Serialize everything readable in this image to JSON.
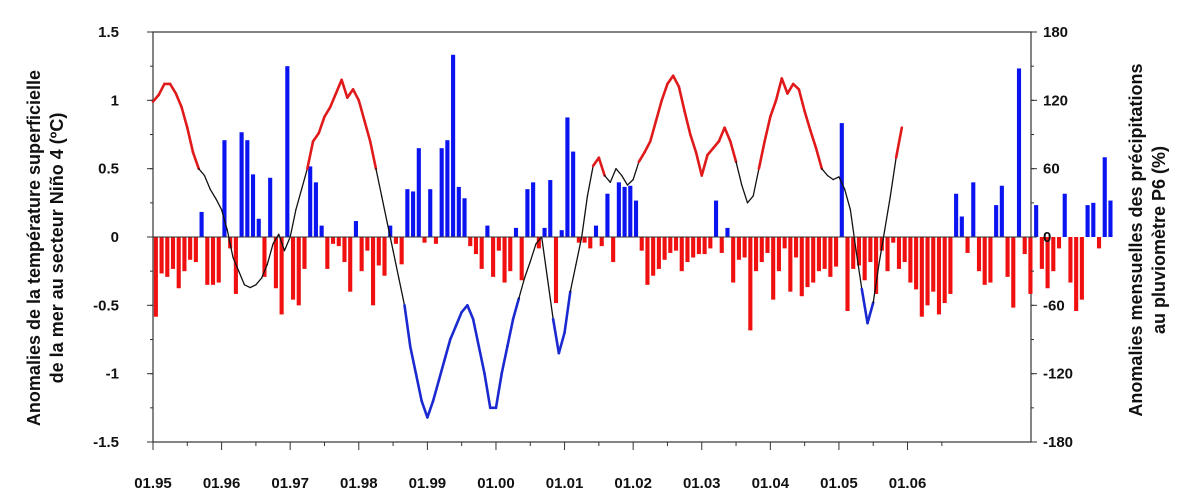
{
  "chart_data": {
    "type": "bar",
    "title": "",
    "xlabel": "",
    "ylabel_left_line1": "Anomalies de la température superficielle",
    "ylabel_left_line2": "de la mer au secteur Niño 4 (ºC)",
    "ylabel_right_line1": "Anomalies mensuelles des précipitations",
    "ylabel_right_line2": "au pluviomètre P6 (%)",
    "x_ticks": [
      "01.95",
      "01.96",
      "01.97",
      "01.98",
      "01.99",
      "01.00",
      "01.01",
      "01.02",
      "01.03",
      "01.04",
      "01.05",
      "01.06"
    ],
    "x_range": [
      0,
      12.8
    ],
    "y_left_range": [
      -1.5,
      1.5
    ],
    "y_left_ticks": [
      "-1.5",
      "-1",
      "-0.5",
      "0",
      "0.5",
      "1",
      "1.5"
    ],
    "y_right_range": [
      -180,
      180
    ],
    "y_right_ticks": [
      "-180",
      "-120",
      "-60",
      "0",
      "60",
      "120",
      "180"
    ],
    "colors": {
      "rain_positive": "#0a14f0",
      "rain_negative": "#f01010",
      "sst_warm": "#e01a1a",
      "sst_cold": "#1a2ad0",
      "sst_neutral": "#111111"
    },
    "series": [
      {
        "type": "bar",
        "axis": "right",
        "values": [
          -70,
          -32,
          -35,
          -28,
          -45,
          -30,
          -20,
          -22,
          22,
          -42,
          -42,
          -40,
          85,
          -10,
          -50,
          92,
          85,
          55,
          16,
          -35,
          52,
          -45,
          -68,
          150,
          -55,
          -60,
          -28,
          62,
          48,
          10,
          -28,
          -6,
          -8,
          -22,
          -48,
          14,
          -30,
          -12,
          -60,
          -25,
          -34,
          10,
          -6,
          -24,
          42,
          40,
          78,
          -5,
          42,
          -6,
          78,
          85,
          160,
          44,
          34,
          -8,
          -15,
          -28,
          10,
          -35,
          -12,
          -40,
          -30,
          8,
          -38,
          42,
          48,
          -10,
          8,
          50,
          -58,
          6,
          105,
          75,
          -5,
          -5,
          -10,
          10,
          -8,
          38,
          -22,
          48,
          44,
          45,
          32,
          -12,
          -42,
          -34,
          -28,
          -20,
          -14,
          -12,
          -30,
          -22,
          -18,
          -15,
          -15,
          -10,
          32,
          -14,
          8,
          -40,
          -20,
          -18,
          -82,
          -30,
          -22,
          -14,
          -55,
          -30,
          -10,
          -48,
          -18,
          -52,
          -44,
          -40,
          -30,
          -28,
          -35,
          -26,
          100,
          -65,
          -28,
          -25,
          -38,
          -22,
          -50,
          -12,
          -30,
          -5,
          -28,
          -22,
          -40,
          -46,
          -70,
          -60,
          -48,
          -68,
          -58,
          -50,
          38,
          18,
          -14,
          48,
          -30,
          -42,
          -40,
          28,
          45,
          -35,
          -62,
          148,
          -15,
          -50,
          28,
          -28,
          -45,
          -30,
          -10,
          38,
          -40,
          -65,
          -55,
          28,
          30,
          -10,
          70,
          32
        ]
      },
      {
        "type": "line",
        "axis": "left",
        "name": "",
        "values": [
          0.99,
          1.04,
          1.12,
          1.12,
          1.05,
          0.95,
          0.8,
          0.62,
          0.5,
          0.45,
          0.35,
          0.28,
          0.2,
          0.05,
          -0.15,
          -0.25,
          -0.35,
          -0.37,
          -0.35,
          -0.3,
          -0.2,
          -0.05,
          0.02,
          -0.1,
          0.0,
          0.2,
          0.35,
          0.5,
          0.7,
          0.76,
          0.88,
          0.95,
          1.05,
          1.15,
          1.02,
          1.08,
          1.0,
          0.85,
          0.7,
          0.5,
          0.3,
          0.1,
          -0.1,
          -0.3,
          -0.5,
          -0.8,
          -1.0,
          -1.2,
          -1.32,
          -1.2,
          -1.05,
          -0.9,
          -0.75,
          -0.65,
          -0.55,
          -0.5,
          -0.6,
          -0.8,
          -1.0,
          -1.25,
          -1.25,
          -1.0,
          -0.8,
          -0.6,
          -0.45,
          -0.3,
          -0.18,
          -0.05,
          0.0,
          -0.3,
          -0.6,
          -0.85,
          -0.7,
          -0.4,
          -0.2,
          0.0,
          0.3,
          0.52,
          0.58,
          0.45,
          0.4,
          0.5,
          0.45,
          0.38,
          0.42,
          0.55,
          0.62,
          0.7,
          0.85,
          1.0,
          1.12,
          1.18,
          1.1,
          0.92,
          0.75,
          0.62,
          0.45,
          0.6,
          0.65,
          0.7,
          0.8,
          0.7,
          0.55,
          0.38,
          0.25,
          0.3,
          0.5,
          0.7,
          0.88,
          1.0,
          1.16,
          1.05,
          1.12,
          1.08,
          0.92,
          0.78,
          0.65,
          0.5,
          0.45,
          0.42,
          0.44,
          0.35,
          0.2,
          -0.1,
          -0.38,
          -0.63,
          -0.48,
          -0.2,
          0.05,
          0.3,
          0.58,
          0.8
        ]
      }
    ]
  }
}
